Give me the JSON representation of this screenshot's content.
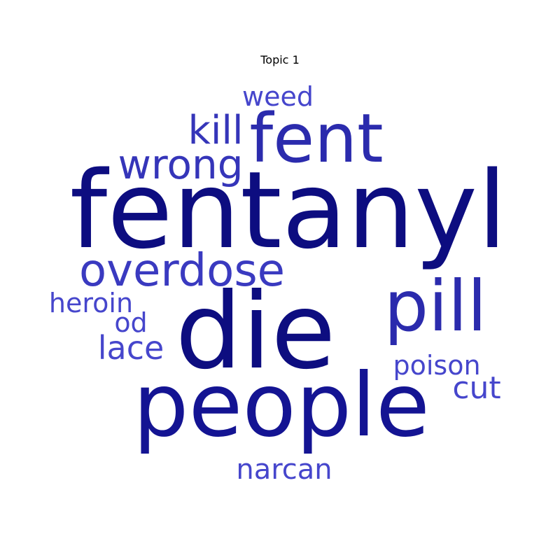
{
  "chart_data": {
    "type": "wordcloud",
    "title": "Topic 1",
    "words": [
      {
        "text": "fentanyl",
        "weight": 1.0,
        "color": "#0d0d80"
      },
      {
        "text": "die",
        "weight": 0.97,
        "color": "#0d0d80"
      },
      {
        "text": "people",
        "weight": 0.9,
        "color": "#141493"
      },
      {
        "text": "fent",
        "weight": 0.62,
        "color": "#2b2bad"
      },
      {
        "text": "pill",
        "weight": 0.6,
        "color": "#2b2bad"
      },
      {
        "text": "overdose",
        "weight": 0.44,
        "color": "#3a3ac0"
      },
      {
        "text": "wrong",
        "weight": 0.4,
        "color": "#3535b9"
      },
      {
        "text": "kill",
        "weight": 0.36,
        "color": "#3535b9"
      },
      {
        "text": "weed",
        "weight": 0.28,
        "color": "#4646cc"
      },
      {
        "text": "lace",
        "weight": 0.3,
        "color": "#4646cc"
      },
      {
        "text": "narcan",
        "weight": 0.28,
        "color": "#4646cc"
      },
      {
        "text": "cut",
        "weight": 0.3,
        "color": "#4646cc"
      },
      {
        "text": "poison",
        "weight": 0.27,
        "color": "#4646cc"
      },
      {
        "text": "heroin",
        "weight": 0.25,
        "color": "#4646cc"
      },
      {
        "text": "od",
        "weight": 0.26,
        "color": "#4646cc"
      }
    ]
  }
}
